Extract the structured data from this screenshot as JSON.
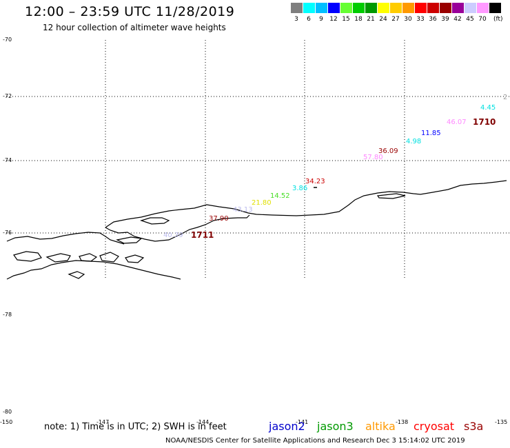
{
  "header": {
    "title": "12:00 – 23:59 UTC 11/28/2019",
    "subtitle": "12 hour collection of altimeter wave heights"
  },
  "legend": {
    "unit": "(ft)",
    "bins": [
      {
        "label": "3",
        "color": "#7f7f7f"
      },
      {
        "label": "6",
        "color": "#00ffff"
      },
      {
        "label": "9",
        "color": "#00bfff"
      },
      {
        "label": "12",
        "color": "#0000ff"
      },
      {
        "label": "15",
        "color": "#66ff33"
      },
      {
        "label": "18",
        "color": "#00cc00"
      },
      {
        "label": "21",
        "color": "#009900"
      },
      {
        "label": "24",
        "color": "#ffff00"
      },
      {
        "label": "27",
        "color": "#ffcc00"
      },
      {
        "label": "30",
        "color": "#ff9900"
      },
      {
        "label": "33",
        "color": "#ff0000"
      },
      {
        "label": "36",
        "color": "#cc0000"
      },
      {
        "label": "39",
        "color": "#990000"
      },
      {
        "label": "42",
        "color": "#990099"
      },
      {
        "label": "45",
        "color": "#ccccff"
      },
      {
        "label": "70",
        "color": "#ff99ff"
      },
      {
        "label": "",
        "color": "#000000"
      }
    ]
  },
  "axes": {
    "lat_ticks": [
      "-70",
      "-72",
      "-74",
      "-76",
      "-78",
      "-80"
    ],
    "lon_ticks": [
      "-150",
      "-147",
      "-144",
      "-141",
      "-138",
      "-135"
    ]
  },
  "observations": [
    {
      "text": "4.45",
      "color": "#00e0e0"
    },
    {
      "text": "1710",
      "color": "#800000",
      "pass": true
    },
    {
      "text": "46.07",
      "color": "#ff88ff"
    },
    {
      "text": "11.85",
      "color": "#0000ff"
    },
    {
      "text": "4.98",
      "color": "#00e0e0"
    },
    {
      "text": "36.09",
      "color": "#990000"
    },
    {
      "text": "57.80",
      "color": "#ff88ff"
    },
    {
      "text": "34.23",
      "color": "#cc0000"
    },
    {
      "text": "3.86",
      "color": "#00e0e0"
    },
    {
      "text": "14.52",
      "color": "#44dd22"
    },
    {
      "text": "21.80",
      "color": "#e0e000"
    },
    {
      "text": "43.13",
      "color": "#bbbbee"
    },
    {
      "text": "37.90",
      "color": "#990000"
    },
    {
      "text": "40.39",
      "color": "#bbbbee"
    },
    {
      "text": "1711",
      "color": "#800000",
      "pass": true
    },
    {
      "text": "2",
      "color": "#999999"
    }
  ],
  "footer": {
    "note": "note:  1) Time is in UTC;  2) SWH is in feet",
    "credit": "NOAA/NESDIS Center for Satellite Applications and Research    Dec  3 15:14:02 UTC 2019",
    "satellites": [
      {
        "name": "jason2",
        "color": "#0000cc"
      },
      {
        "name": "jason3",
        "color": "#009900"
      },
      {
        "name": "altika",
        "color": "#ff9900"
      },
      {
        "name": "cryosat",
        "color": "#ff0000"
      },
      {
        "name": "s3a",
        "color": "#990000"
      }
    ]
  }
}
